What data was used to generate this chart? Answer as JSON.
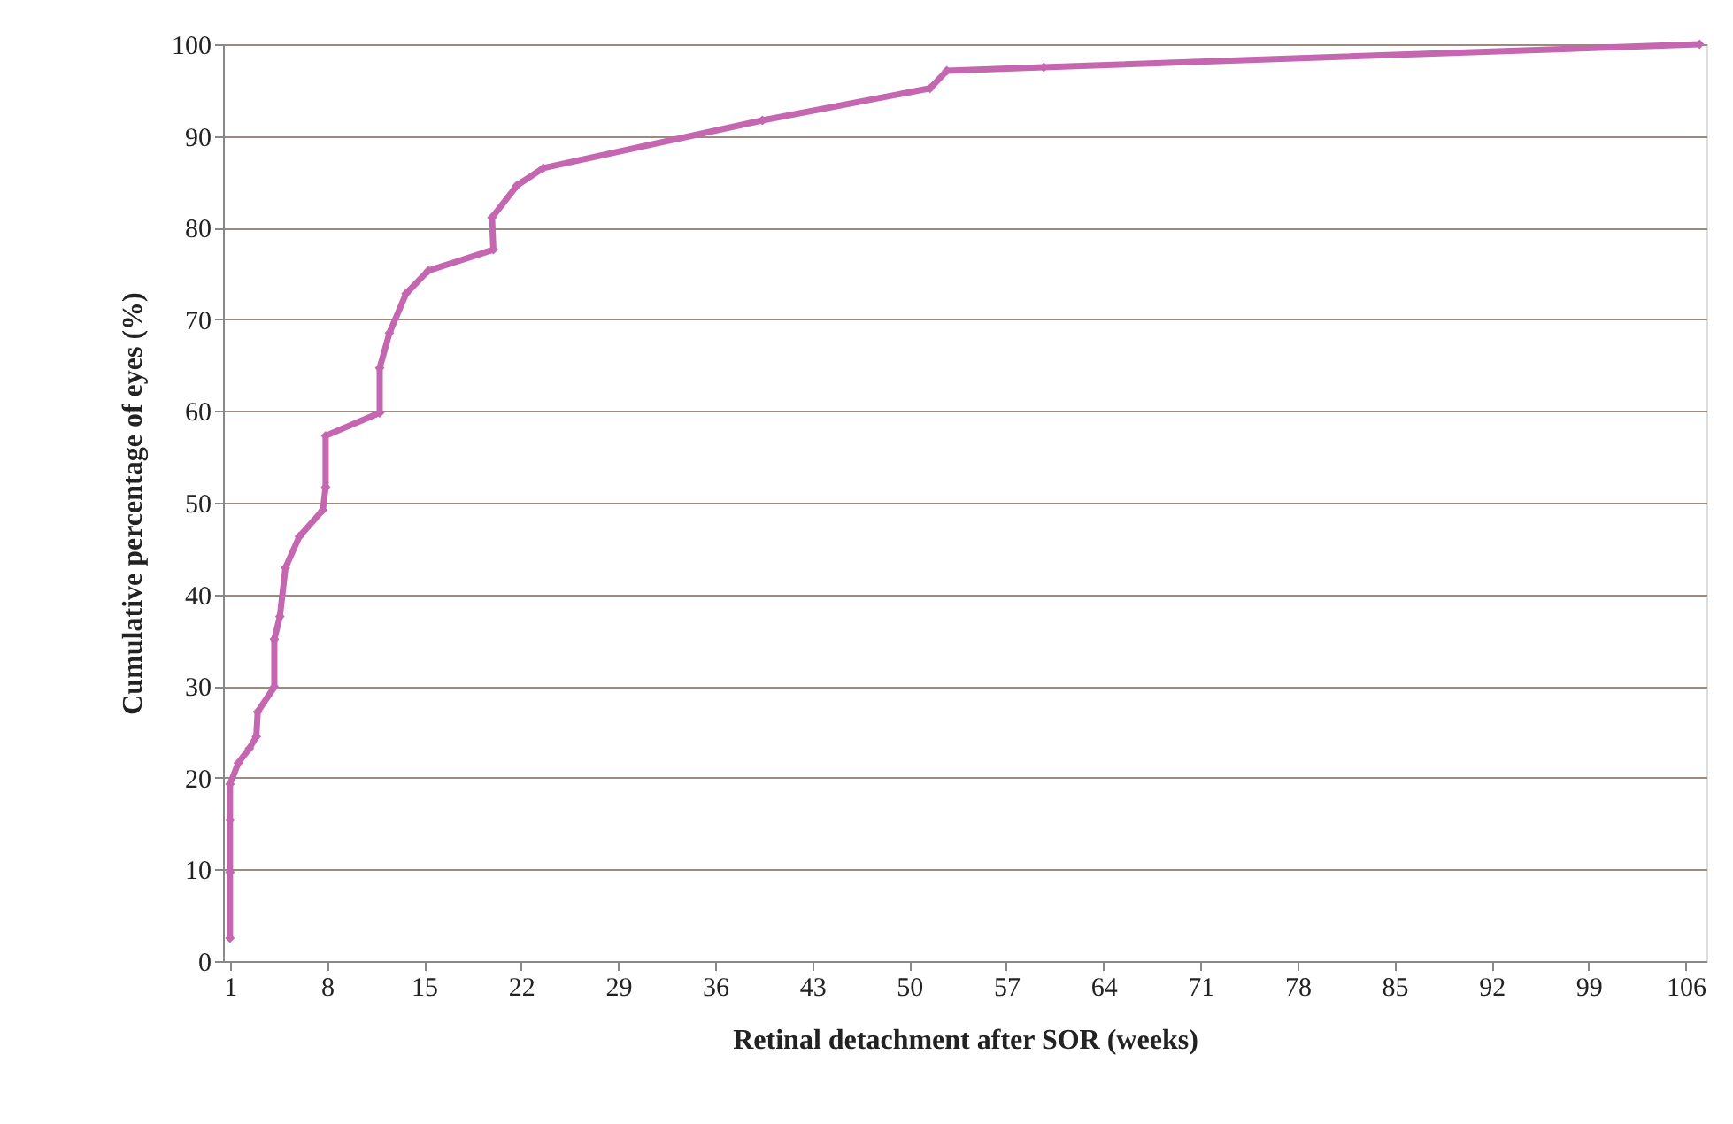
{
  "chart_data": {
    "type": "line",
    "xlabel": "Retinal detachment after SOR (weeks)",
    "ylabel": "Cumulative percentage of eyes (%)",
    "x": [
      1,
      1,
      1,
      1,
      1.6,
      2.4,
      2.9,
      3,
      4.2,
      4.2,
      4.6,
      5,
      6,
      7.7,
      7.9,
      7.9,
      11.8,
      11.8,
      12.5,
      13.7,
      15.3,
      20,
      19.9,
      21.7,
      23.6,
      39.4,
      51.5,
      52.7,
      59.7,
      107
    ],
    "series": [
      {
        "color": "#c466b0",
        "values": [
          2.5,
          9.7,
          15.4,
          19.3,
          21.6,
          23.2,
          24.5,
          27.2,
          29.9,
          35.1,
          37.6,
          42.9,
          46.3,
          49.2,
          51.7,
          57.3,
          59.8,
          64.7,
          68.5,
          72.8,
          75.3,
          77.6,
          81.1,
          84.6,
          86.5,
          91.7,
          95.2,
          97.1,
          97.5,
          100
        ]
      }
    ],
    "xlim": [
      0.5,
      107.5
    ],
    "xticks": [
      1,
      8,
      15,
      22,
      29,
      36,
      43,
      50,
      57,
      64,
      71,
      78,
      85,
      92,
      99,
      106
    ],
    "ylim": [
      0,
      100
    ],
    "yticks": [
      0,
      10,
      20,
      30,
      40,
      50,
      60,
      70,
      80,
      90,
      100
    ],
    "grid": "y",
    "marker": "diamond",
    "line_style": "solid"
  }
}
